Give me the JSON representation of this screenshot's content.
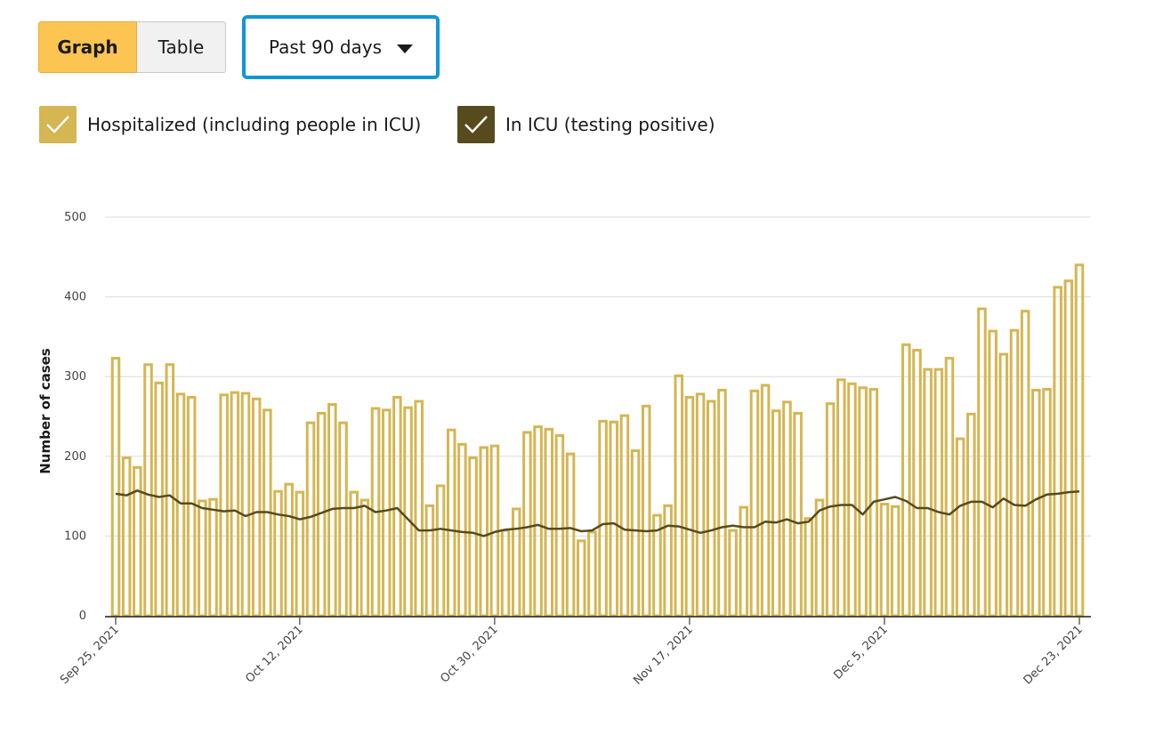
{
  "view_toggle": {
    "graph_label": "Graph",
    "table_label": "Table",
    "active": "graph"
  },
  "range_select": {
    "value": "Past 90 days",
    "icon": "caret-down-icon"
  },
  "legend": [
    {
      "label": "Hospitalized (including people in ICU)",
      "color": "#d4b653",
      "checked": true,
      "icon": "checkmark-icon"
    },
    {
      "label": "In ICU (testing positive)",
      "color": "#574a1d",
      "checked": true,
      "icon": "checkmark-icon"
    }
  ],
  "chart_data": {
    "type": "bar",
    "title": "",
    "ylabel": "Number of cases",
    "xlabel": "",
    "ylim": [
      0,
      500
    ],
    "yticks": [
      0,
      100,
      200,
      300,
      400,
      500
    ],
    "grid": true,
    "x_start": "Sep 25, 2021",
    "xtick_labels": [
      "Sep 25, 2021",
      "Oct 12, 2021",
      "Oct 30, 2021",
      "Nov 17, 2021",
      "Dec 5, 2021",
      "Dec 23, 2021"
    ],
    "xtick_indices": [
      0,
      17,
      35,
      53,
      71,
      89
    ],
    "series": [
      {
        "name": "Hospitalized (including people in ICU)",
        "kind": "bar",
        "color": "#d4b653",
        "values": [
          323,
          198,
          186,
          315,
          292,
          315,
          278,
          274,
          144,
          146,
          277,
          280,
          279,
          272,
          258,
          156,
          165,
          155,
          242,
          254,
          265,
          242,
          155,
          145,
          260,
          258,
          274,
          261,
          269,
          138,
          163,
          233,
          215,
          198,
          211,
          213,
          107,
          134,
          230,
          237,
          234,
          226,
          203,
          94,
          105,
          244,
          243,
          251,
          207,
          263,
          126,
          138,
          301,
          274,
          278,
          269,
          283,
          107,
          136,
          282,
          289,
          257,
          268,
          254,
          122,
          145,
          266,
          296,
          291,
          286,
          284,
          140,
          137,
          340,
          333,
          309,
          309,
          323,
          222,
          253,
          385,
          357,
          328,
          358,
          382,
          283,
          284,
          412,
          420,
          440
        ]
      },
      {
        "name": "In ICU (testing positive)",
        "kind": "line",
        "color": "#574a1d",
        "values": [
          153,
          151,
          157,
          152,
          149,
          151,
          141,
          141,
          135,
          133,
          131,
          132,
          125,
          130,
          130,
          127,
          125,
          121,
          124,
          129,
          134,
          135,
          135,
          138,
          130,
          132,
          135,
          121,
          107,
          107,
          109,
          107,
          105,
          104,
          100,
          105,
          108,
          109,
          111,
          114,
          109,
          109,
          110,
          106,
          107,
          115,
          116,
          108,
          107,
          106,
          107,
          113,
          112,
          108,
          104,
          107,
          111,
          113,
          111,
          111,
          118,
          117,
          121,
          116,
          118,
          132,
          137,
          139,
          139,
          127,
          143,
          146,
          149,
          144,
          135,
          135,
          130,
          127,
          138,
          143,
          143,
          136,
          147,
          139,
          138,
          146,
          152,
          153,
          155,
          156
        ]
      }
    ]
  }
}
